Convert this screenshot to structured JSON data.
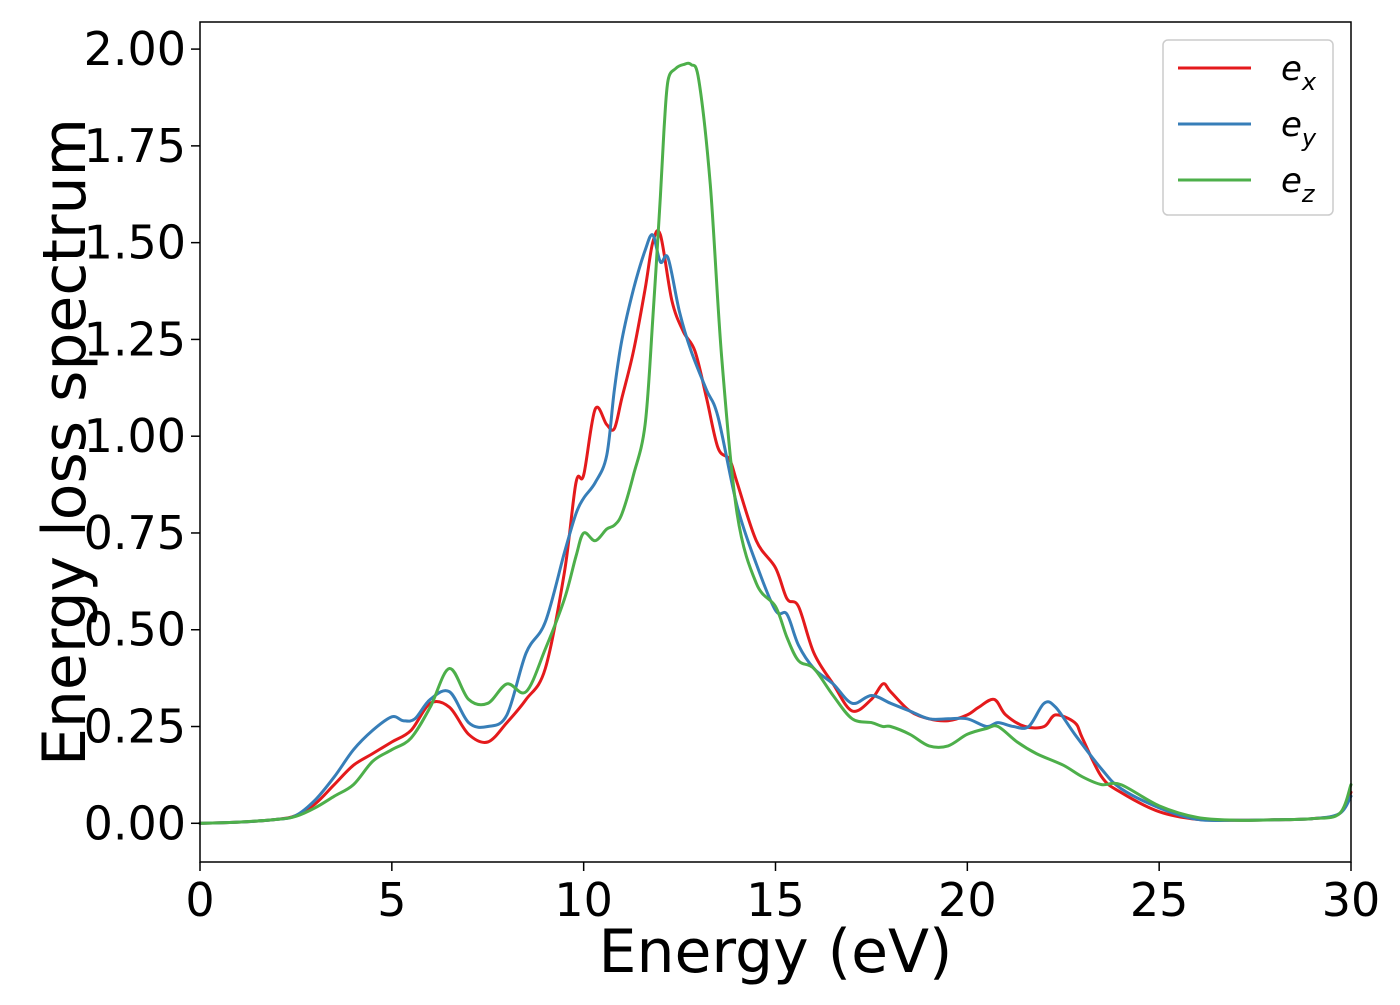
{
  "chart_data": {
    "type": "line",
    "xlabel": "Energy (eV)",
    "ylabel": "Energy loss spectrum",
    "xlim": [
      0,
      30
    ],
    "ylim": [
      -0.1,
      2.07
    ],
    "xticks": [
      0,
      5,
      10,
      15,
      20,
      25,
      30
    ],
    "xtick_labels": [
      "0",
      "5",
      "10",
      "15",
      "20",
      "25",
      "30"
    ],
    "yticks": [
      0.0,
      0.25,
      0.5,
      0.75,
      1.0,
      1.25,
      1.5,
      1.75,
      2.0
    ],
    "ytick_labels": [
      "0.00",
      "0.25",
      "0.50",
      "0.75",
      "1.00",
      "1.25",
      "1.50",
      "1.75",
      "2.00"
    ],
    "grid": false,
    "legend_position": "top-right",
    "series": [
      {
        "name": "ex",
        "label_base": "e",
        "label_sub": "x",
        "color": "#e41a1c",
        "x": [
          0,
          1,
          2,
          2.5,
          3,
          3.5,
          4,
          4.5,
          5,
          5.5,
          6,
          6.5,
          7,
          7.5,
          8,
          8.5,
          9,
          9.5,
          9.8,
          10,
          10.3,
          10.6,
          10.8,
          11,
          11.3,
          11.6,
          11.8,
          12,
          12.3,
          12.6,
          12.9,
          13.2,
          13.5,
          13.8,
          14,
          14.5,
          15,
          15.3,
          15.6,
          16,
          16.5,
          17,
          17.5,
          17.8,
          18,
          18.5,
          19,
          19.5,
          20,
          20.3,
          20.7,
          21,
          21.5,
          22,
          22.3,
          22.8,
          23,
          23.5,
          24,
          25,
          26,
          27,
          28,
          29,
          29.7,
          30
        ],
        "y": [
          0.0,
          0.003,
          0.01,
          0.02,
          0.05,
          0.1,
          0.15,
          0.18,
          0.21,
          0.24,
          0.31,
          0.3,
          0.23,
          0.21,
          0.26,
          0.32,
          0.4,
          0.65,
          0.88,
          0.9,
          1.07,
          1.03,
          1.02,
          1.1,
          1.22,
          1.38,
          1.5,
          1.52,
          1.35,
          1.27,
          1.22,
          1.1,
          0.97,
          0.94,
          0.88,
          0.73,
          0.66,
          0.58,
          0.56,
          0.44,
          0.36,
          0.29,
          0.32,
          0.36,
          0.34,
          0.29,
          0.27,
          0.265,
          0.28,
          0.3,
          0.32,
          0.28,
          0.25,
          0.25,
          0.28,
          0.26,
          0.22,
          0.12,
          0.08,
          0.03,
          0.01,
          0.008,
          0.009,
          0.012,
          0.025,
          0.08
        ]
      },
      {
        "name": "ey",
        "label_base": "e",
        "label_sub": "y",
        "color": "#377eb8",
        "x": [
          0,
          1,
          2,
          2.5,
          3,
          3.5,
          4,
          4.5,
          5,
          5.3,
          5.6,
          6,
          6.5,
          7,
          7.5,
          8,
          8.5,
          9,
          9.5,
          9.8,
          10,
          10.3,
          10.6,
          10.8,
          11,
          11.3,
          11.6,
          11.8,
          12,
          12.2,
          12.5,
          12.8,
          13.2,
          13.5,
          14,
          14.5,
          15,
          15.3,
          15.6,
          16,
          16.5,
          17,
          17.5,
          18,
          18.5,
          19,
          19.5,
          20,
          20.5,
          20.8,
          21.2,
          21.6,
          22,
          22.3,
          22.8,
          23.5,
          24,
          25,
          26,
          27,
          28,
          29,
          29.7,
          30
        ],
        "y": [
          0.0,
          0.003,
          0.01,
          0.02,
          0.06,
          0.12,
          0.19,
          0.24,
          0.275,
          0.265,
          0.27,
          0.32,
          0.34,
          0.26,
          0.25,
          0.28,
          0.44,
          0.52,
          0.7,
          0.8,
          0.84,
          0.88,
          0.95,
          1.12,
          1.25,
          1.38,
          1.48,
          1.52,
          1.45,
          1.46,
          1.32,
          1.22,
          1.12,
          1.05,
          0.82,
          0.67,
          0.55,
          0.54,
          0.46,
          0.4,
          0.36,
          0.31,
          0.33,
          0.31,
          0.29,
          0.27,
          0.27,
          0.27,
          0.25,
          0.26,
          0.25,
          0.25,
          0.31,
          0.3,
          0.23,
          0.14,
          0.09,
          0.04,
          0.01,
          0.008,
          0.009,
          0.012,
          0.025,
          0.07
        ]
      },
      {
        "name": "ez",
        "label_base": "e",
        "label_sub": "z",
        "color": "#4daf4a",
        "x": [
          0,
          1,
          2,
          2.5,
          3,
          3.5,
          4,
          4.5,
          5,
          5.5,
          6,
          6.5,
          7,
          7.5,
          8,
          8.5,
          9,
          9.5,
          9.8,
          10,
          10.3,
          10.6,
          10.8,
          11,
          11.3,
          11.6,
          11.8,
          12,
          12.1,
          12.2,
          12.4,
          12.6,
          12.8,
          13,
          13.3,
          13.6,
          14,
          14.5,
          15,
          15.3,
          15.6,
          16,
          16.5,
          17,
          17.5,
          17.8,
          18,
          18.5,
          19,
          19.5,
          20,
          20.5,
          20.8,
          21.3,
          21.8,
          22.5,
          23,
          23.5,
          24,
          25,
          26,
          27,
          28,
          29,
          29.7,
          30
        ],
        "y": [
          0.0,
          0.003,
          0.01,
          0.018,
          0.04,
          0.07,
          0.1,
          0.16,
          0.19,
          0.22,
          0.3,
          0.4,
          0.32,
          0.31,
          0.36,
          0.34,
          0.45,
          0.58,
          0.69,
          0.75,
          0.73,
          0.76,
          0.77,
          0.8,
          0.9,
          1.03,
          1.3,
          1.62,
          1.8,
          1.92,
          1.95,
          1.96,
          1.96,
          1.92,
          1.65,
          1.2,
          0.8,
          0.62,
          0.56,
          0.48,
          0.42,
          0.4,
          0.33,
          0.27,
          0.26,
          0.25,
          0.25,
          0.23,
          0.2,
          0.2,
          0.23,
          0.245,
          0.25,
          0.21,
          0.18,
          0.15,
          0.12,
          0.1,
          0.1,
          0.045,
          0.015,
          0.008,
          0.009,
          0.012,
          0.025,
          0.1
        ]
      }
    ]
  }
}
